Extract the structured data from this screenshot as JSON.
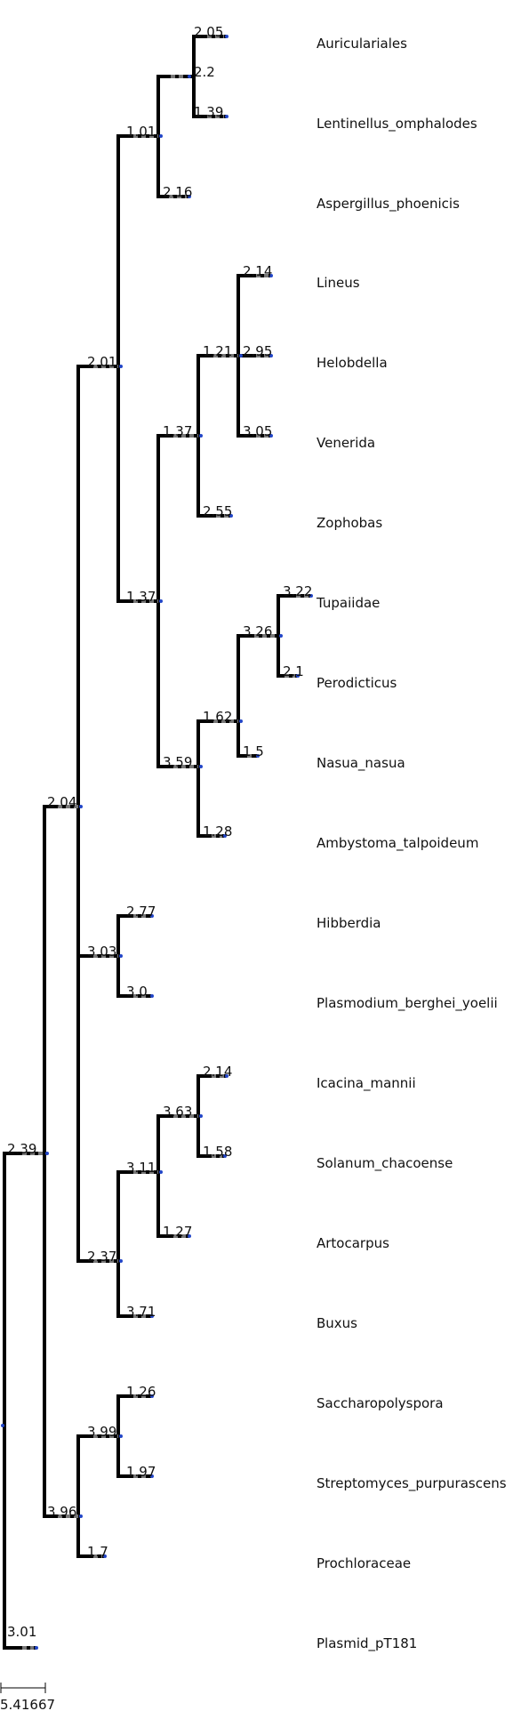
{
  "tree": {
    "colors": {
      "edge": "#000000",
      "tail": "#777777",
      "node": "#2246c8",
      "text": "#111111"
    },
    "leaves": [
      {
        "name": "Auriculariales",
        "branch": "2.05"
      },
      {
        "name": "Lentinellus_omphalodes",
        "branch": "1.39"
      },
      {
        "name": "Aspergillus_phoenicis",
        "branch": "2.16"
      },
      {
        "name": "Lineus",
        "branch": "2.14"
      },
      {
        "name": "Helobdella",
        "branch": "2.95"
      },
      {
        "name": "Venerida",
        "branch": "3.05"
      },
      {
        "name": "Zophobas",
        "branch": "2.55"
      },
      {
        "name": "Tupaiidae",
        "branch": "3.22"
      },
      {
        "name": "Perodicticus",
        "branch": "2.1"
      },
      {
        "name": "Nasua_nasua",
        "branch": "1.5"
      },
      {
        "name": "Ambystoma_talpoideum",
        "branch": "1.28"
      },
      {
        "name": "Hibberdia",
        "branch": "2.77"
      },
      {
        "name": "Plasmodium_berghei_yoelii",
        "branch": "3.0"
      },
      {
        "name": "Icacina_mannii",
        "branch": "2.14"
      },
      {
        "name": "Solanum_chacoense",
        "branch": "1.58"
      },
      {
        "name": "Artocarpus",
        "branch": "1.27"
      },
      {
        "name": "Buxus",
        "branch": "3.71"
      },
      {
        "name": "Saccharopolyspora",
        "branch": "1.26"
      },
      {
        "name": "Streptomyces_purpurascens",
        "branch": "1.97"
      },
      {
        "name": "Prochloraceae",
        "branch": "1.7"
      },
      {
        "name": "Plasmid_pT181",
        "branch": "3.01"
      }
    ],
    "internal_branches": [
      {
        "clade": "Auriculariales+Lentinellus",
        "branch": "2.2"
      },
      {
        "clade": "Auriculariales..Aspergillus",
        "branch": "1.01"
      },
      {
        "clade": "Lineus..Venerida",
        "branch": "1.21"
      },
      {
        "clade": "Lineus..Zophobas",
        "branch": "1.37"
      },
      {
        "clade": "Tupaiidae+Perodicticus",
        "branch": "3.26"
      },
      {
        "clade": "Tupaiidae..Nasua",
        "branch": "1.62"
      },
      {
        "clade": "Tupaiidae..Ambystoma",
        "branch": "3.59"
      },
      {
        "clade": "Lineus..Ambystoma",
        "branch": "1.37"
      },
      {
        "clade": "Auriculariales..Ambystoma",
        "branch": "2.01"
      },
      {
        "clade": "Hibberdia+Plasmodium",
        "branch": "3.03"
      },
      {
        "clade": "Icacina+Solanum",
        "branch": "3.63"
      },
      {
        "clade": "Icacina..Artocarpus",
        "branch": "3.11"
      },
      {
        "clade": "Icacina..Buxus",
        "branch": "2.37"
      },
      {
        "clade": "Auriculariales..Buxus",
        "branch": "2.04"
      },
      {
        "clade": "Saccharopolyspora+Streptomyces",
        "branch": "3.99"
      },
      {
        "clade": "Saccharopolyspora..Prochloraceae",
        "branch": "3.96"
      },
      {
        "clade": "Auriculariales..Prochloraceae",
        "branch": "2.39"
      }
    ],
    "scale_label": "5.41667"
  }
}
